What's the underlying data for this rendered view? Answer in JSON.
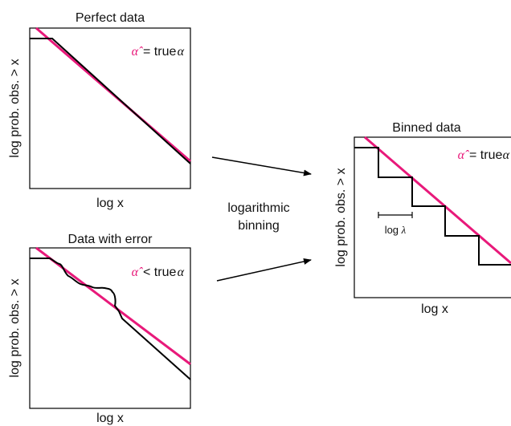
{
  "colors": {
    "fit_line": "#e8197a",
    "data_line": "#000000",
    "frame": "#000000",
    "text": "#111111"
  },
  "symbols": {
    "alpha_hat": "α̂",
    "alpha": "α"
  },
  "panel_perfect": {
    "title": "Perfect data",
    "ylabel": "log prob. obs. > x",
    "xlabel": "log x",
    "relation": "= true"
  },
  "panel_error": {
    "title": "Data with error",
    "ylabel": "log prob. obs. > x",
    "xlabel": "log x",
    "relation": "< true"
  },
  "panel_binned": {
    "title": "Binned data",
    "ylabel": "log prob. obs. > x",
    "xlabel": "log x",
    "relation": "= true",
    "bin_label": "log",
    "bin_symbol": "λ"
  },
  "method": {
    "line1": "logarithmic",
    "line2": "binning"
  }
}
